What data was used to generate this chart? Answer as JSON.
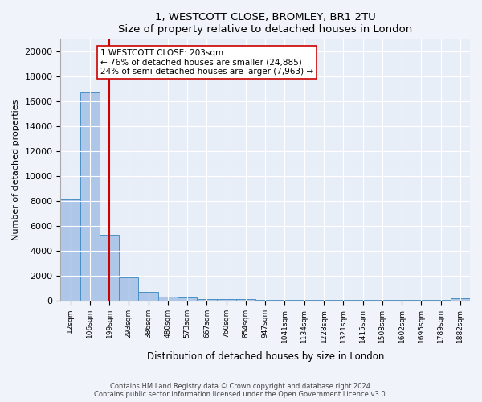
{
  "title1": "1, WESTCOTT CLOSE, BROMLEY, BR1 2TU",
  "title2": "Size of property relative to detached houses in London",
  "xlabel": "Distribution of detached houses by size in London",
  "ylabel": "Number of detached properties",
  "bin_labels": [
    "12sqm",
    "106sqm",
    "199sqm",
    "293sqm",
    "386sqm",
    "480sqm",
    "573sqm",
    "667sqm",
    "760sqm",
    "854sqm",
    "947sqm",
    "1041sqm",
    "1134sqm",
    "1228sqm",
    "1321sqm",
    "1415sqm",
    "1508sqm",
    "1602sqm",
    "1695sqm",
    "1789sqm",
    "1882sqm"
  ],
  "bar_heights": [
    8100,
    16700,
    5300,
    1850,
    700,
    300,
    270,
    150,
    120,
    100,
    90,
    80,
    70,
    65,
    60,
    55,
    50,
    45,
    40,
    35,
    200
  ],
  "bar_color": "#aec6e8",
  "bar_edge_color": "#4a90c4",
  "property_line_x": 2,
  "property_sqm": 203,
  "annotation_text": "1 WESTCOTT CLOSE: 203sqm\n← 76% of detached houses are smaller (24,885)\n24% of semi-detached houses are larger (7,963) →",
  "annotation_box_color": "#ffffff",
  "annotation_box_edge": "#cc0000",
  "ylim": [
    0,
    21000
  ],
  "yticks": [
    0,
    2000,
    4000,
    6000,
    8000,
    10000,
    12000,
    14000,
    16000,
    18000,
    20000
  ],
  "footer1": "Contains HM Land Registry data © Crown copyright and database right 2024.",
  "footer2": "Contains public sector information licensed under the Open Government Licence v3.0.",
  "bg_color": "#f0f4fa",
  "plot_bg_color": "#e8eef8"
}
